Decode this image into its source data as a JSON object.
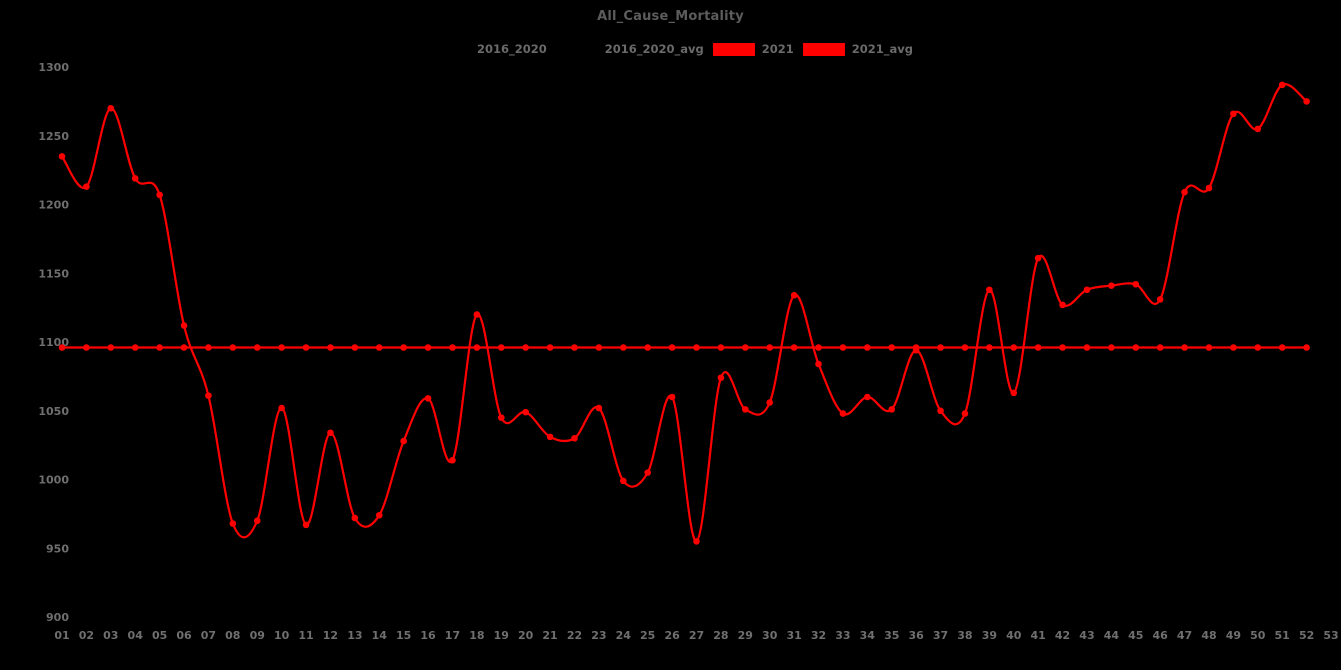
{
  "title": "All_Cause_Mortality",
  "legend": {
    "items": [
      {
        "label": "2016_2020",
        "swatch_color": "#000000"
      },
      {
        "label": "2016_2020_avg",
        "swatch_color": "#000000"
      },
      {
        "label": "2021",
        "swatch_color": "#ff0000"
      },
      {
        "label": "2021_avg",
        "swatch_color": "#ff0000"
      }
    ]
  },
  "colors": {
    "background": "#000000",
    "series_red": "#ff0000",
    "title_text": "#5c5c5c",
    "tick_text": "#6f6f6f",
    "legend_text": "#6a6a6a"
  },
  "chart_data": {
    "type": "line",
    "title": "All_Cause_Mortality",
    "xlabel": "",
    "ylabel": "",
    "ylim": [
      900,
      1300
    ],
    "y_ticks": [
      900,
      950,
      1000,
      1050,
      1100,
      1150,
      1200,
      1250,
      1300
    ],
    "x_tick_labels": [
      "01",
      "02",
      "03",
      "04",
      "05",
      "06",
      "07",
      "08",
      "09",
      "10",
      "11",
      "12",
      "13",
      "14",
      "15",
      "16",
      "17",
      "18",
      "19",
      "20",
      "21",
      "22",
      "23",
      "24",
      "25",
      "26",
      "27",
      "28",
      "29",
      "30",
      "31",
      "32",
      "33",
      "34",
      "35",
      "36",
      "37",
      "38",
      "39",
      "40",
      "41",
      "42",
      "43",
      "44",
      "45",
      "46",
      "47",
      "48",
      "49",
      "50",
      "51",
      "52",
      "53"
    ],
    "grid": false,
    "legend_position": "top",
    "legend_entries": [
      "2016_2020",
      "2016_2020_avg",
      "2021",
      "2021_avg"
    ],
    "note_hidden_series": "2016_2020 and 2016_2020_avg are drawn in black and invisible against the black background",
    "series": [
      {
        "name": "2021",
        "color": "#ff0000",
        "smooth": true,
        "markers": true,
        "values": [
          1235,
          1213,
          1270,
          1219,
          1207,
          1112,
          1061,
          968,
          970,
          1052,
          967,
          1034,
          972,
          974,
          1028,
          1059,
          1014,
          1120,
          1045,
          1049,
          1031,
          1030,
          1052,
          999,
          1005,
          1060,
          955,
          1074,
          1051,
          1056,
          1134,
          1084,
          1048,
          1060,
          1051,
          1094,
          1050,
          1048,
          1138,
          1063,
          1161,
          1127,
          1138,
          1141,
          1142,
          1131,
          1209,
          1212,
          1266,
          1255,
          1287,
          1275
        ]
      },
      {
        "name": "2021_avg",
        "color": "#ff0000",
        "smooth": false,
        "markers": true,
        "constant_value": 1096,
        "n_points": 52
      }
    ]
  }
}
